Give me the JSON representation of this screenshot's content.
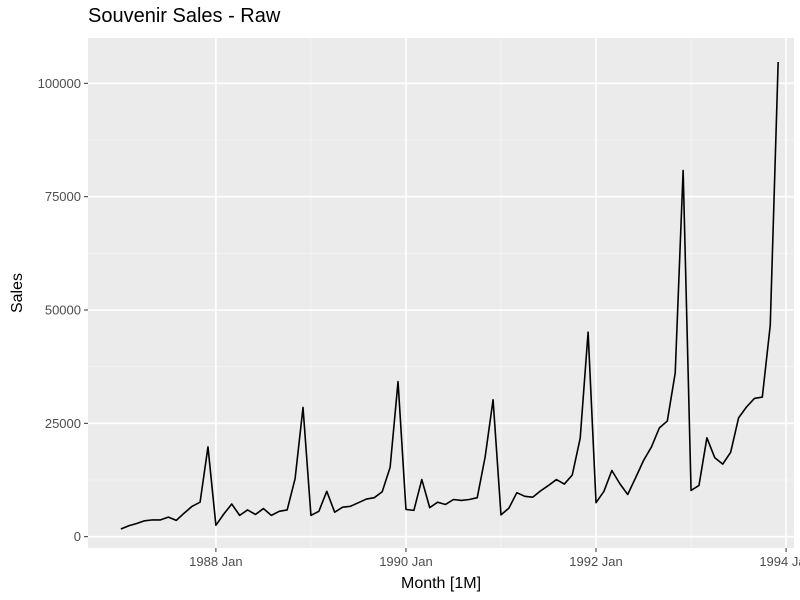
{
  "chart_data": {
    "type": "line",
    "title": "Souvenir Sales - Raw",
    "xlabel": "Month [1M]",
    "ylabel": "Sales",
    "x_start": "1987 Jan",
    "x_ticks": [
      "1988 Jan",
      "1990 Jan",
      "1992 Jan",
      "1994 Jan"
    ],
    "y_ticks": [
      0,
      25000,
      50000,
      75000,
      100000
    ],
    "ylim": [
      -2500,
      110000
    ],
    "grid": true,
    "series": [
      {
        "color": "#000000",
        "values": [
          1700,
          2400,
          2900,
          3500,
          3700,
          3700,
          4300,
          3600,
          5200,
          6700,
          7600,
          19800,
          2500,
          5000,
          7200,
          4700,
          5900,
          4900,
          6200,
          4700,
          5600,
          5900,
          12800,
          28500,
          4700,
          5600,
          10000,
          5400,
          6500,
          6700,
          7500,
          8300,
          8600,
          9900,
          15300,
          34200,
          6000,
          5800,
          12600,
          6400,
          7600,
          7100,
          8200,
          8000,
          8200,
          8600,
          17600,
          30200,
          4800,
          6300,
          9700,
          8900,
          8700,
          10100,
          11300,
          12600,
          11600,
          13600,
          21700,
          45100,
          7500,
          10000,
          14600,
          11700,
          9300,
          13000,
          16800,
          19800,
          24000,
          25500,
          36100,
          80800,
          10200,
          11300,
          21800,
          17400,
          16000,
          18600,
          26200,
          28600,
          30500,
          30800,
          46600,
          104700
        ]
      }
    ]
  }
}
